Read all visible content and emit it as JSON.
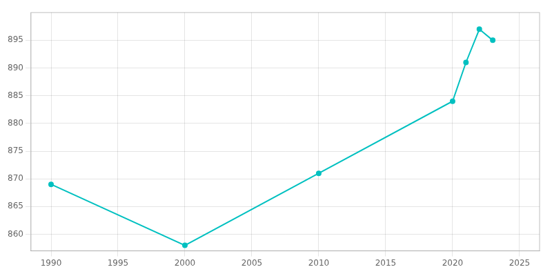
{
  "chart_data": {
    "type": "line",
    "x": [
      1990,
      2000,
      2010,
      2020,
      2021,
      2022,
      2023
    ],
    "values": [
      869,
      858,
      871,
      884,
      891,
      897,
      895
    ],
    "color": "#00C0C0",
    "marker": "circle",
    "xlim": [
      1988.5,
      2026.5
    ],
    "ylim": [
      857,
      900
    ],
    "xticks": [
      1990,
      1995,
      2000,
      2005,
      2010,
      2015,
      2020,
      2025
    ],
    "yticks": [
      860,
      865,
      870,
      875,
      880,
      885,
      890,
      895
    ],
    "grid": true
  }
}
